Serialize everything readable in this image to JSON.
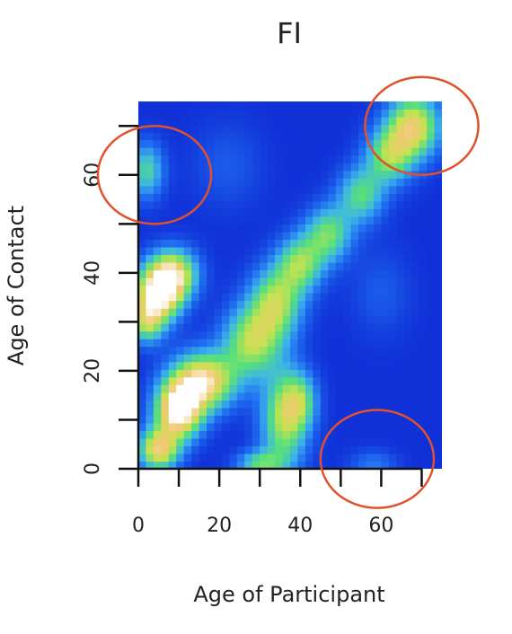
{
  "chart_data": {
    "type": "heatmap",
    "title": "FI",
    "xlabel": "Age of Participant",
    "ylabel": "Age of Contact",
    "xlim": [
      0,
      75
    ],
    "ylim": [
      0,
      75
    ],
    "x_ticks": [
      "0",
      "20",
      "40",
      "60"
    ],
    "y_ticks": [
      "0",
      "20",
      "40",
      "60"
    ],
    "x_tick_values": [
      0,
      20,
      40,
      60
    ],
    "y_tick_values": [
      0,
      20,
      40,
      60
    ],
    "x_minor_ticks": [
      0,
      10,
      20,
      30,
      40,
      50,
      60,
      70
    ],
    "y_minor_ticks": [
      0,
      10,
      20,
      30,
      40,
      50,
      60,
      70
    ],
    "colorscale": [
      "#1030d8",
      "#1f6cf0",
      "#3cb4ea",
      "#58e07a",
      "#c7e250",
      "#f1c873",
      "#ffffff"
    ],
    "hotspots": [
      {
        "x": 10,
        "y": 12,
        "sx": 4,
        "sy": 4,
        "w": 1.05
      },
      {
        "x": 16,
        "y": 18,
        "sx": 5.5,
        "sy": 4,
        "w": 0.9
      },
      {
        "x": 5,
        "y": 4,
        "sx": 3.5,
        "sy": 3,
        "w": 0.8
      },
      {
        "x": 28,
        "y": 26,
        "sx": 5,
        "sy": 5,
        "w": 0.62
      },
      {
        "x": 34,
        "y": 34,
        "sx": 4.5,
        "sy": 5,
        "w": 0.62
      },
      {
        "x": 40,
        "y": 42,
        "sx": 4,
        "sy": 4,
        "w": 0.55
      },
      {
        "x": 47,
        "y": 48,
        "sx": 4,
        "sy": 4,
        "w": 0.52
      },
      {
        "x": 55,
        "y": 56,
        "sx": 4,
        "sy": 4,
        "w": 0.48
      },
      {
        "x": 62,
        "y": 64,
        "sx": 4,
        "sy": 4,
        "w": 0.55
      },
      {
        "x": 68,
        "y": 70,
        "sx": 4.5,
        "sy": 4.5,
        "w": 0.78
      },
      {
        "x": 5,
        "y": 36,
        "sx": 4,
        "sy": 4,
        "w": 1.0
      },
      {
        "x": 9,
        "y": 40,
        "sx": 4,
        "sy": 3.5,
        "w": 0.7
      },
      {
        "x": 2,
        "y": 30,
        "sx": 3,
        "sy": 3,
        "w": 0.55
      },
      {
        "x": 36,
        "y": 10,
        "sx": 4,
        "sy": 7,
        "w": 0.62
      },
      {
        "x": 40,
        "y": 14,
        "sx": 3,
        "sy": 4,
        "w": 0.4
      },
      {
        "x": 30,
        "y": 1,
        "sx": 4,
        "sy": 2,
        "w": 0.45
      },
      {
        "x": 2,
        "y": 61,
        "sx": 3,
        "sy": 4,
        "w": 0.45
      },
      {
        "x": 58,
        "y": 1,
        "sx": 4,
        "sy": 2,
        "w": 0.2
      },
      {
        "x": 22,
        "y": 62,
        "sx": 6,
        "sy": 6,
        "w": 0.12
      },
      {
        "x": 60,
        "y": 36,
        "sx": 5,
        "sy": 6,
        "w": 0.12
      }
    ],
    "annotations": [
      {
        "type": "ellipse",
        "cx": 4,
        "cy": 60,
        "rx": 14,
        "ry": 10,
        "color": "#e0512c"
      },
      {
        "type": "ellipse",
        "cx": 70,
        "cy": 70,
        "rx": 14,
        "ry": 10,
        "color": "#e0512c"
      },
      {
        "type": "ellipse",
        "cx": 59,
        "cy": 2,
        "rx": 14,
        "ry": 10,
        "color": "#e0512c"
      }
    ]
  }
}
